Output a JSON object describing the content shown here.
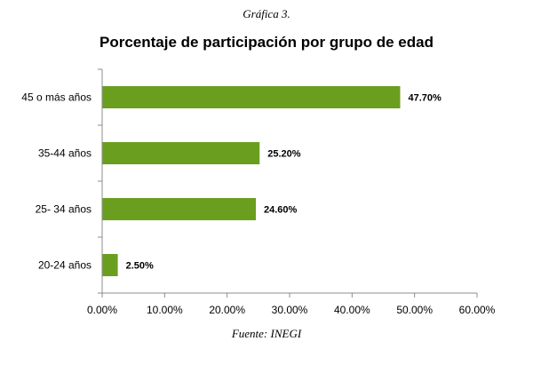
{
  "caption": "Gráfica 3.",
  "source": "Fuente: INEGI",
  "chart_data": {
    "type": "bar",
    "orientation": "horizontal",
    "title": "Porcentaje de participación por grupo de edad",
    "categories": [
      "45 o más años",
      "35-44 años",
      "25- 34 años",
      "20-24 años"
    ],
    "values": [
      47.7,
      25.2,
      24.6,
      2.5
    ],
    "value_labels": [
      "47.70%",
      "25.20%",
      "24.60%",
      "2.50%"
    ],
    "xlim": [
      0,
      60
    ],
    "x_ticks": [
      "0.00%",
      "10.00%",
      "20.00%",
      "30.00%",
      "40.00%",
      "50.00%",
      "60.00%"
    ],
    "grid": false,
    "bar_color": "#6a9e1f",
    "xlabel": "",
    "ylabel": ""
  }
}
